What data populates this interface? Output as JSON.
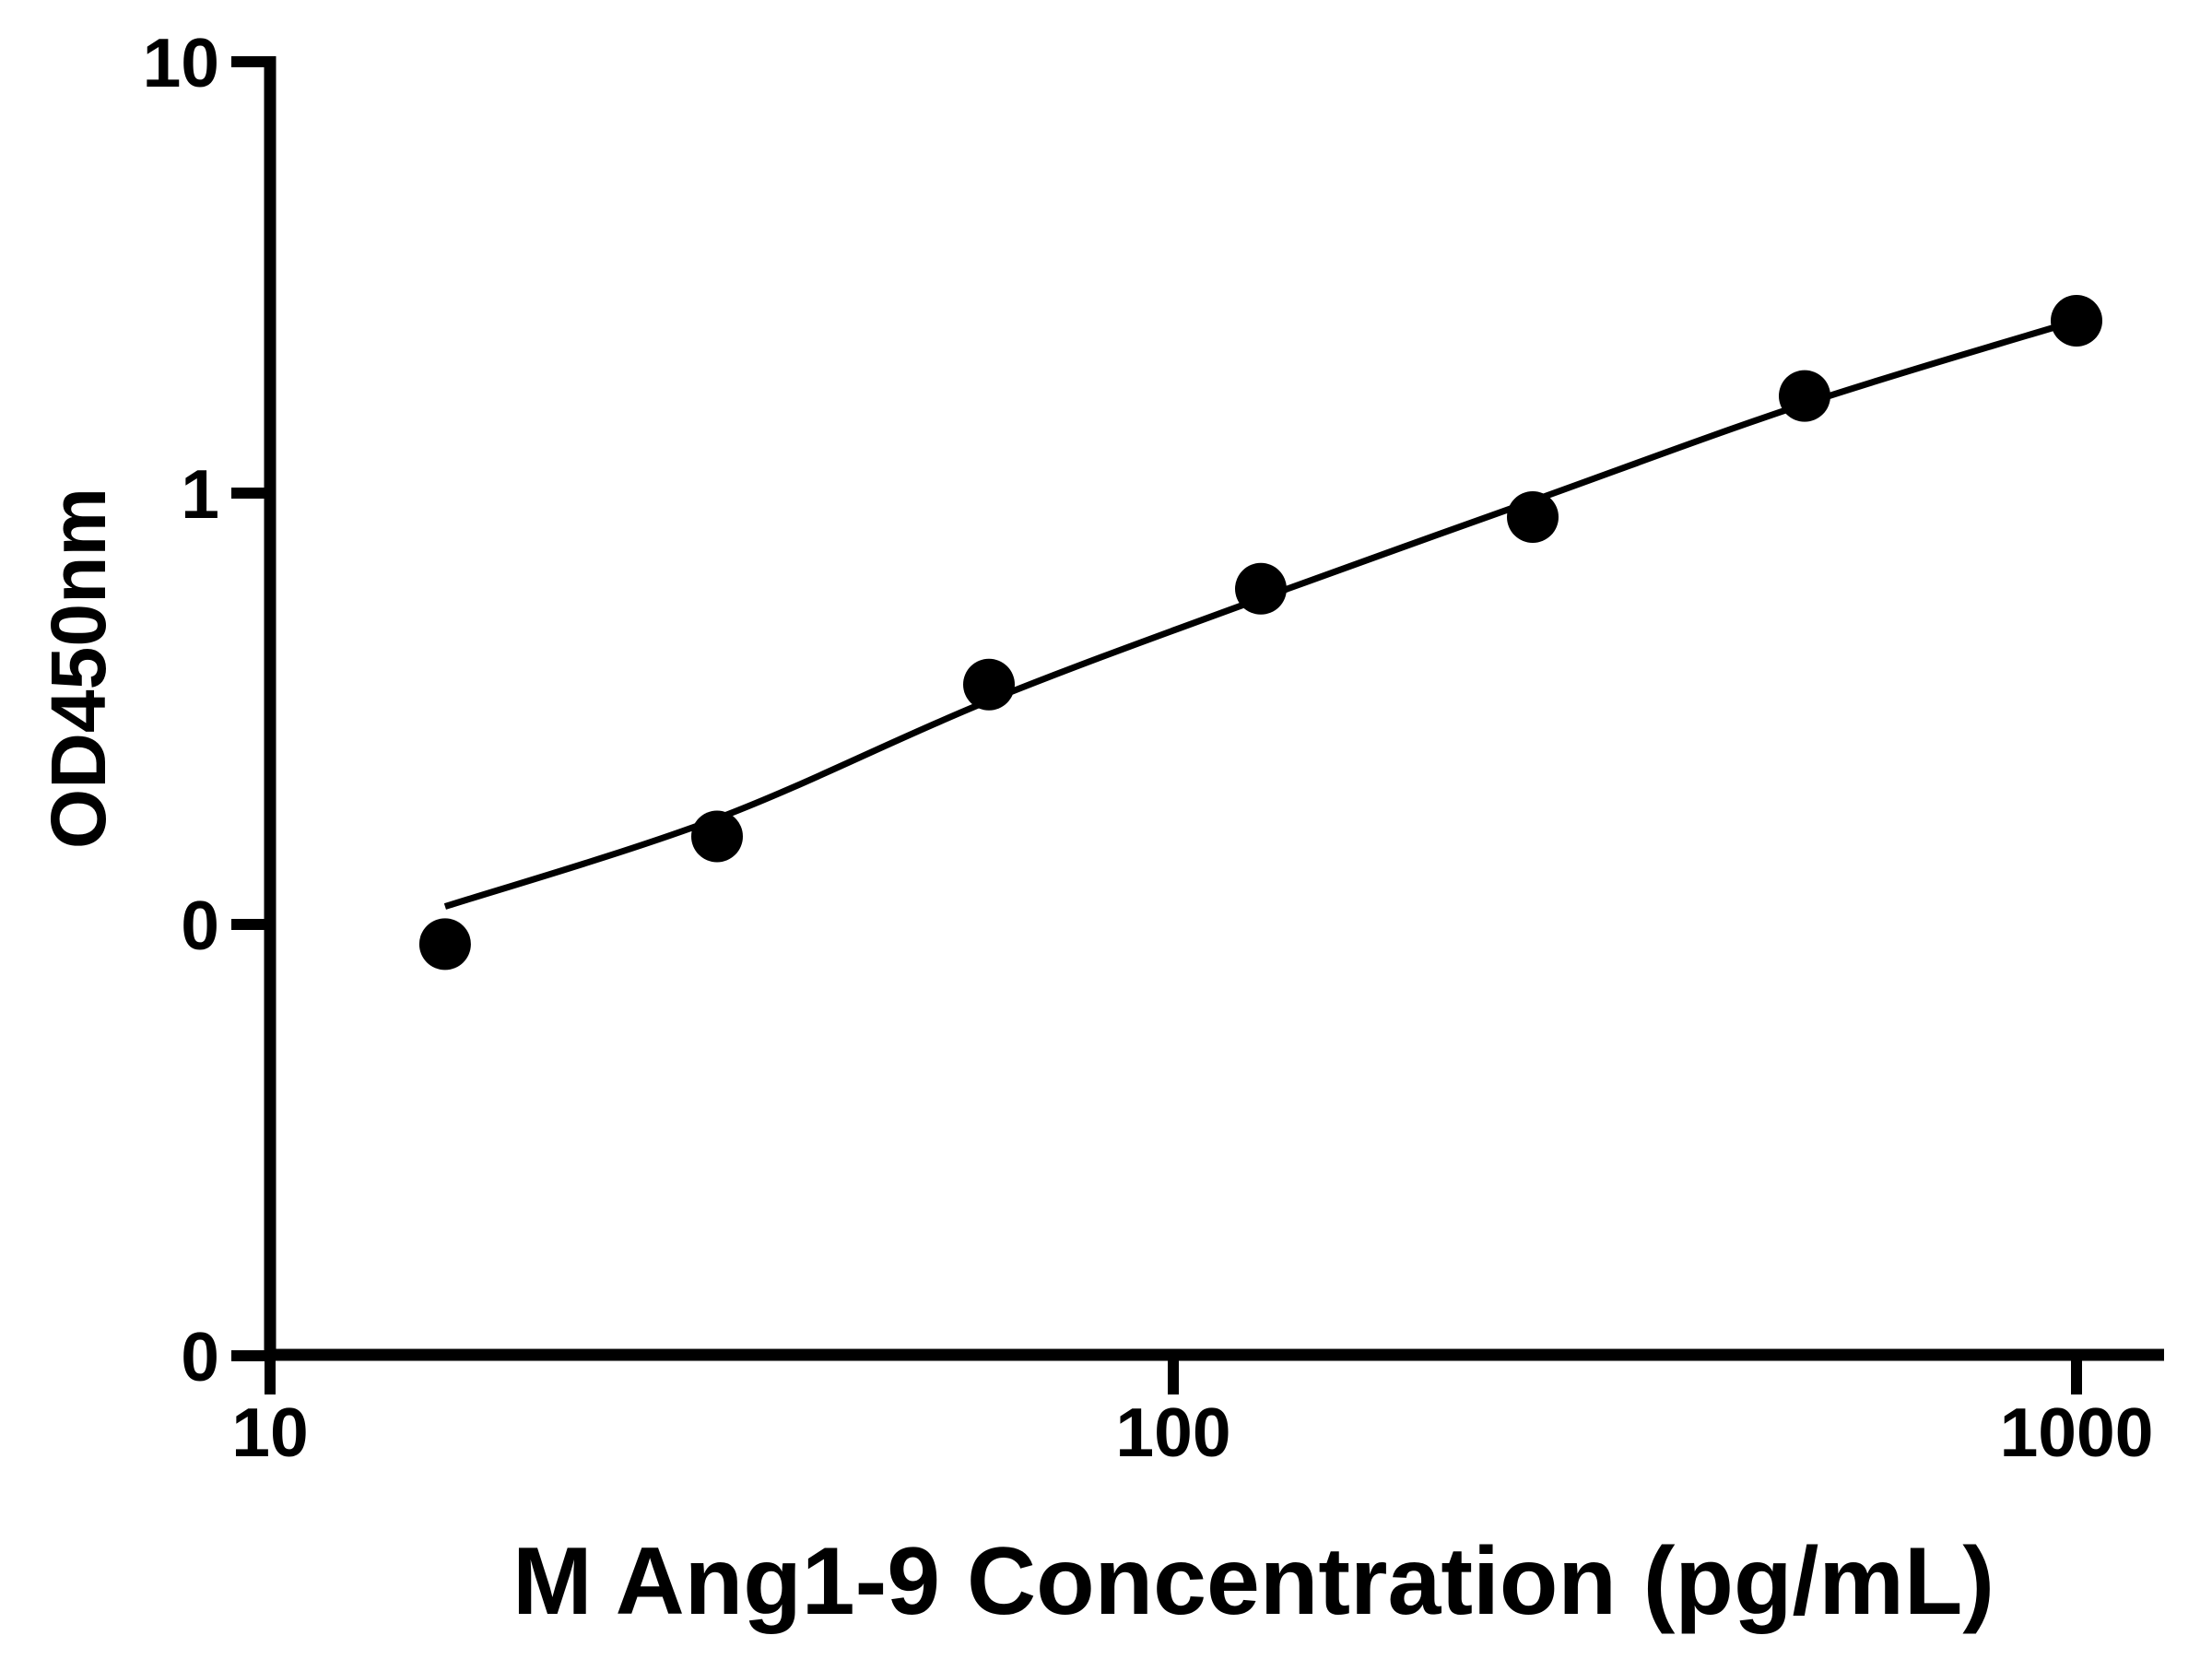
{
  "figure": {
    "background_color": "#ffffff",
    "ink_color": "#000000"
  },
  "chart_data": {
    "type": "scatter",
    "title": "",
    "xlabel": "M Ang1-9 Concentration (pg/mL)",
    "ylabel": "OD450nm",
    "x_scale": "log10",
    "y_scale": "log10",
    "xlim": [
      10,
      1253
    ],
    "ylim": [
      0.01,
      10
    ],
    "grid": false,
    "legend": null,
    "x_ticks": [
      {
        "value": 10,
        "label": "10"
      },
      {
        "value": 100,
        "label": "100"
      },
      {
        "value": 1000,
        "label": "1000"
      }
    ],
    "y_ticks": [
      {
        "value": 10,
        "label": "10"
      },
      {
        "value": 1,
        "label": "1"
      },
      {
        "value": 0.1,
        "label": "0"
      },
      {
        "value": 0.01,
        "label": "0"
      }
    ],
    "series": [
      {
        "name": "standard-points",
        "kind": "scatter",
        "marker": "filled-circle",
        "color": "#000000",
        "points": [
          {
            "x": 15.625,
            "y": 0.09
          },
          {
            "x": 31.25,
            "y": 0.16
          },
          {
            "x": 62.5,
            "y": 0.36
          },
          {
            "x": 125,
            "y": 0.6
          },
          {
            "x": 250,
            "y": 0.88
          },
          {
            "x": 500,
            "y": 1.68
          },
          {
            "x": 1000,
            "y": 2.51
          }
        ]
      },
      {
        "name": "fit-curve",
        "kind": "line",
        "color": "#000000",
        "points": [
          {
            "x": 15.625,
            "y": 0.11
          },
          {
            "x": 31.25,
            "y": 0.176
          },
          {
            "x": 62.5,
            "y": 0.33
          },
          {
            "x": 125,
            "y": 0.57
          },
          {
            "x": 250,
            "y": 0.96
          },
          {
            "x": 500,
            "y": 1.61
          },
          {
            "x": 1000,
            "y": 2.51
          }
        ]
      }
    ]
  }
}
